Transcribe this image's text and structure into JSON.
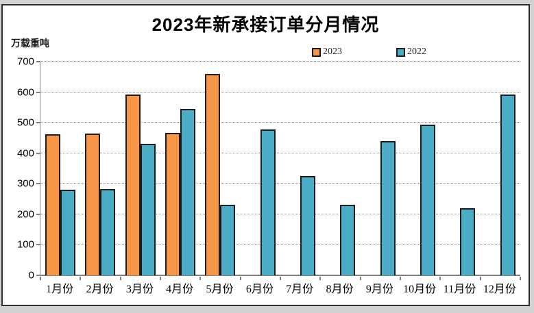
{
  "window": {
    "outer_background": "#d2d2d2",
    "frame_border_color": "#2e2e2e",
    "canvas_background": "#ffffff"
  },
  "chart_data": {
    "type": "bar",
    "title": "2023年新承接订单分月情况",
    "unit_label": "万载重吨",
    "categories": [
      "1月份",
      "2月份",
      "3月份",
      "4月份",
      "5月份",
      "6月份",
      "7月份",
      "8月份",
      "9月份",
      "10月份",
      "11月份",
      "12月份"
    ],
    "series": [
      {
        "name": "2023",
        "color": "#F79646",
        "border_color": "#1c1c1c",
        "values": [
          462,
          464,
          593,
          467,
          659,
          null,
          null,
          null,
          null,
          null,
          null,
          null
        ]
      },
      {
        "name": "2022",
        "color": "#4BACC6",
        "border_color": "#1c1c1c",
        "values": [
          281,
          283,
          430,
          546,
          231,
          477,
          326,
          232,
          440,
          493,
          220,
          593
        ]
      }
    ],
    "ylim": [
      0,
      700
    ],
    "yticks": [
      0,
      100,
      200,
      300,
      400,
      500,
      600,
      700
    ],
    "xlabel": "",
    "ylabel": "万载重吨",
    "grid": "horizontal-dotted",
    "legend_position": "top-center",
    "gridline_color": "#8c8c8c",
    "axis_color": "#7f7f7f"
  }
}
